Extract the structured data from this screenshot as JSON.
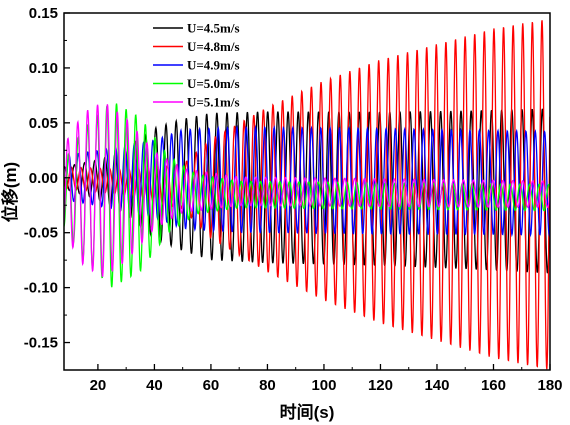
{
  "chart_data": {
    "type": "line",
    "xlabel": "时间(s)",
    "ylabel": "位移(m)",
    "xlim": [
      8,
      180
    ],
    "ylim": [
      -0.175,
      0.15
    ],
    "xticks": [
      20,
      40,
      60,
      80,
      100,
      120,
      140,
      160,
      180
    ],
    "yticks": [
      0.15,
      0.1,
      0.05,
      0.0,
      -0.05,
      -0.1,
      -0.15
    ],
    "ytick_labels": [
      "0.15",
      "0.10",
      "0.05",
      "0.00",
      "-0.05",
      "-0.10",
      "-0.15"
    ],
    "grid": false,
    "legend_position": "top-left",
    "series": [
      {
        "name": "U=4.5m/s",
        "color": "#000000",
        "period": 3.6,
        "envelope": [
          [
            8,
            0.01
          ],
          [
            20,
            0.018
          ],
          [
            30,
            0.03
          ],
          [
            40,
            0.05
          ],
          [
            50,
            0.06
          ],
          [
            60,
            0.067
          ],
          [
            80,
            0.069
          ],
          [
            120,
            0.07
          ],
          [
            150,
            0.072
          ],
          [
            180,
            0.075
          ]
        ],
        "center": [
          [
            8,
            0.0
          ],
          [
            60,
            -0.008
          ],
          [
            180,
            -0.012
          ]
        ]
      },
      {
        "name": "U=4.8m/s",
        "color": "#ff0000",
        "period": 3.4,
        "envelope": [
          [
            8,
            0.01
          ],
          [
            30,
            0.012
          ],
          [
            50,
            0.02
          ],
          [
            60,
            0.045
          ],
          [
            80,
            0.075
          ],
          [
            100,
            0.1
          ],
          [
            120,
            0.12
          ],
          [
            140,
            0.135
          ],
          [
            160,
            0.15
          ],
          [
            180,
            0.16
          ]
        ],
        "center": [
          [
            8,
            0.0
          ],
          [
            60,
            -0.01
          ],
          [
            180,
            -0.015
          ]
        ]
      },
      {
        "name": "U=4.9m/s",
        "color": "#0000ff",
        "period": 3.3,
        "envelope": [
          [
            8,
            0.02
          ],
          [
            20,
            0.025
          ],
          [
            40,
            0.035
          ],
          [
            50,
            0.045
          ],
          [
            70,
            0.048
          ],
          [
            120,
            0.048
          ],
          [
            180,
            0.047
          ]
        ],
        "center": [
          [
            8,
            0.0
          ],
          [
            180,
            -0.005
          ]
        ]
      },
      {
        "name": "U=5.0m/s",
        "color": "#00ff00",
        "period": 3.4,
        "envelope": [
          [
            8,
            0.03
          ],
          [
            15,
            0.06
          ],
          [
            25,
            0.085
          ],
          [
            35,
            0.07
          ],
          [
            45,
            0.035
          ],
          [
            55,
            0.018
          ],
          [
            70,
            0.012
          ],
          [
            180,
            0.012
          ]
        ],
        "center": [
          [
            8,
            -0.015
          ],
          [
            40,
            -0.015
          ],
          [
            60,
            -0.015
          ],
          [
            180,
            -0.018
          ]
        ]
      },
      {
        "name": "U=5.1m/s",
        "color": "#ff00ff",
        "period": 3.5,
        "envelope": [
          [
            8,
            0.04
          ],
          [
            15,
            0.07
          ],
          [
            22,
            0.08
          ],
          [
            30,
            0.065
          ],
          [
            40,
            0.035
          ],
          [
            50,
            0.02
          ],
          [
            70,
            0.013
          ],
          [
            180,
            0.012
          ]
        ],
        "center": [
          [
            8,
            -0.01
          ],
          [
            60,
            -0.012
          ],
          [
            180,
            -0.015
          ]
        ]
      }
    ]
  }
}
